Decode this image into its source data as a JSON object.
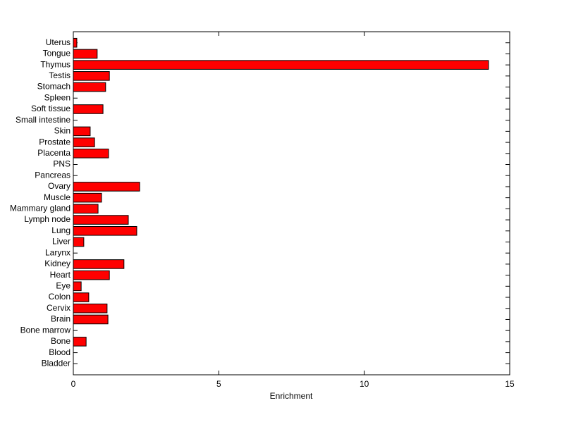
{
  "chart_data": {
    "type": "barh",
    "xlabel": "Enrichment",
    "categories": [
      "Bladder",
      "Blood",
      "Bone",
      "Bone marrow",
      "Brain",
      "Cervix",
      "Colon",
      "Eye",
      "Heart",
      "Kidney",
      "Larynx",
      "Liver",
      "Lung",
      "Lymph node",
      "Mammary gland",
      "Muscle",
      "Ovary",
      "Pancreas",
      "PNS",
      "Placenta",
      "Prostate",
      "Skin",
      "Small intestine",
      "Soft tissue",
      "Spleen",
      "Stomach",
      "Testis",
      "Thymus",
      "Tongue",
      "Uterus"
    ],
    "values": [
      0,
      0,
      0.44,
      0,
      1.19,
      1.16,
      0.53,
      0.27,
      1.24,
      1.74,
      0,
      0.36,
      2.18,
      1.89,
      0.85,
      0.97,
      2.28,
      0,
      0,
      1.21,
      0.73,
      0.58,
      0,
      1.02,
      0,
      1.11,
      1.24,
      14.27,
      0.82,
      0.12
    ],
    "color": "#ff0000",
    "xlim": [
      0,
      15
    ],
    "xticks": [
      0,
      5,
      10,
      15
    ]
  }
}
